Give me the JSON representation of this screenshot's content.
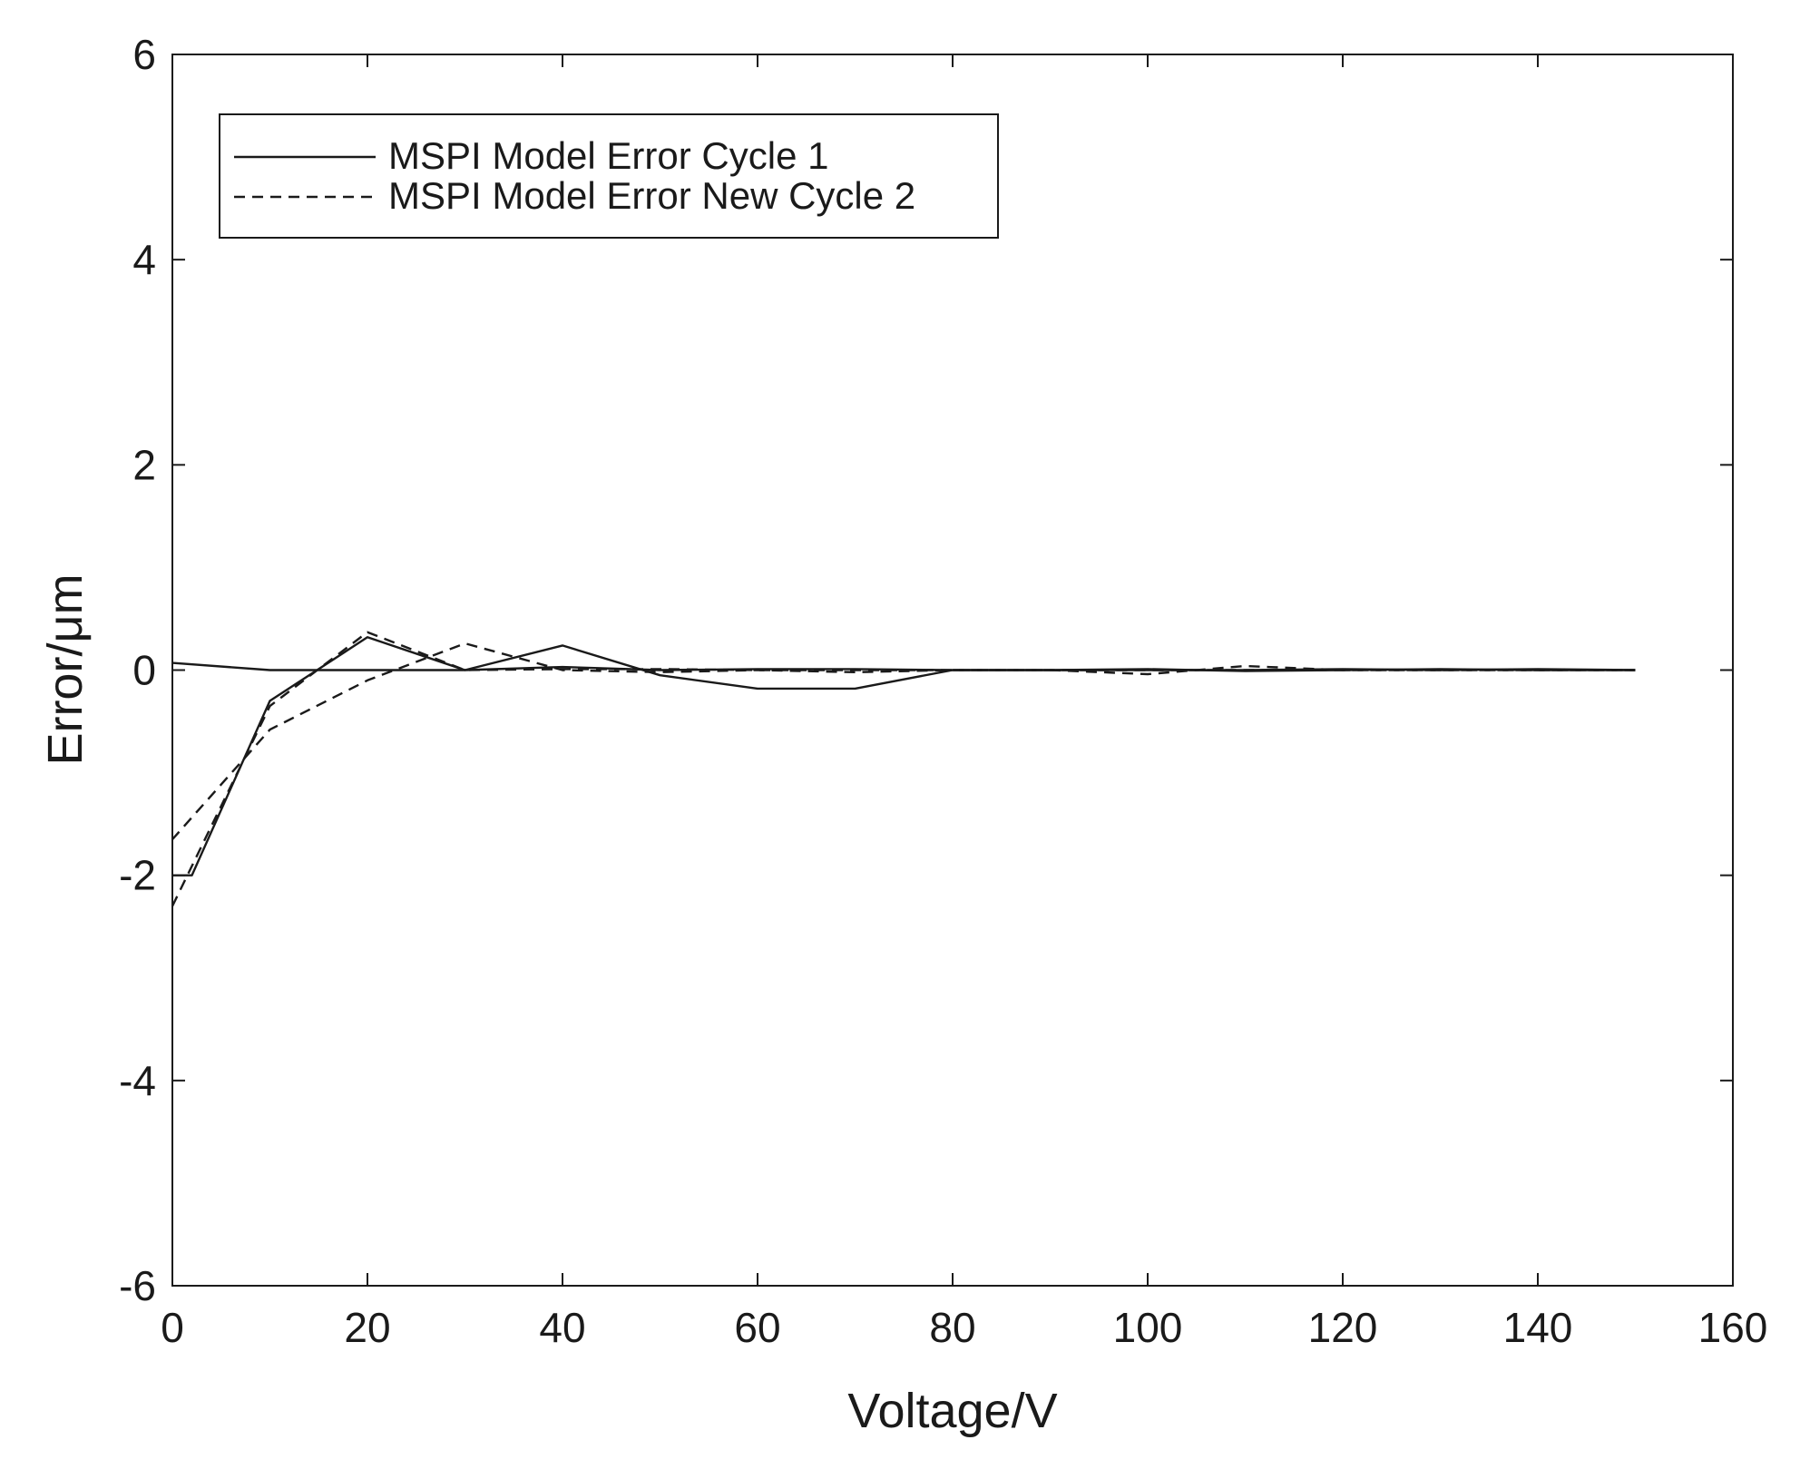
{
  "chart_data": {
    "type": "line",
    "title": "",
    "xlabel": "Voltage/V",
    "ylabel": "Error/μm",
    "xlim": [
      0,
      160
    ],
    "ylim": [
      -6,
      6
    ],
    "xticks": [
      0,
      20,
      40,
      60,
      80,
      100,
      120,
      140,
      160
    ],
    "yticks": [
      -6,
      -4,
      -2,
      0,
      2,
      4,
      6
    ],
    "grid": false,
    "legend_position": "top-left",
    "series": [
      {
        "name": "MSPI Model Error Cycle 1",
        "style": "solid",
        "color": "#1a1a1a",
        "segments": [
          [
            [
              0,
              -2.0
            ],
            [
              2,
              -2.0
            ],
            [
              10,
              -0.3
            ],
            [
              20,
              0.32
            ],
            [
              30,
              0.0
            ],
            [
              40,
              0.24
            ],
            [
              50,
              -0.05
            ],
            [
              60,
              -0.18
            ],
            [
              70,
              -0.18
            ],
            [
              80,
              0.0
            ],
            [
              90,
              0.0
            ],
            [
              100,
              0.01
            ],
            [
              110,
              -0.01
            ],
            [
              120,
              0.0
            ],
            [
              130,
              0.01
            ],
            [
              140,
              0.0
            ],
            [
              150,
              0.0
            ]
          ],
          [
            [
              150,
              0.0
            ],
            [
              140,
              0.01
            ],
            [
              130,
              0.0
            ],
            [
              120,
              0.01
            ],
            [
              110,
              0.0
            ],
            [
              100,
              0.0
            ],
            [
              90,
              0.0
            ],
            [
              80,
              0.0
            ],
            [
              70,
              0.01
            ],
            [
              60,
              0.01
            ],
            [
              50,
              0.0
            ],
            [
              40,
              0.03
            ],
            [
              30,
              0.0
            ],
            [
              20,
              0.0
            ],
            [
              10,
              0.0
            ],
            [
              0,
              0.07
            ]
          ]
        ]
      },
      {
        "name": "MSPI Model Error New Cycle 2",
        "style": "dashed",
        "color": "#1a1a1a",
        "segments": [
          [
            [
              0,
              -2.3
            ],
            [
              10,
              -0.35
            ],
            [
              20,
              0.37
            ],
            [
              30,
              0.0
            ],
            [
              40,
              0.01
            ],
            [
              50,
              0.01
            ],
            [
              60,
              0.0
            ],
            [
              70,
              0.0
            ],
            [
              80,
              0.0
            ],
            [
              90,
              0.0
            ],
            [
              100,
              -0.04
            ],
            [
              110,
              0.04
            ],
            [
              120,
              0.0
            ],
            [
              130,
              0.0
            ],
            [
              140,
              0.0
            ],
            [
              150,
              0.0
            ]
          ],
          [
            [
              150,
              0.0
            ],
            [
              140,
              0.0
            ],
            [
              130,
              0.0
            ],
            [
              120,
              0.0
            ],
            [
              110,
              0.0
            ],
            [
              100,
              0.0
            ],
            [
              90,
              0.0
            ],
            [
              80,
              0.0
            ],
            [
              70,
              -0.02
            ],
            [
              60,
              0.0
            ],
            [
              50,
              -0.02
            ],
            [
              40,
              0.0
            ],
            [
              30,
              0.26
            ],
            [
              20,
              -0.1
            ],
            [
              10,
              -0.58
            ],
            [
              0,
              -1.65
            ]
          ]
        ]
      }
    ]
  }
}
